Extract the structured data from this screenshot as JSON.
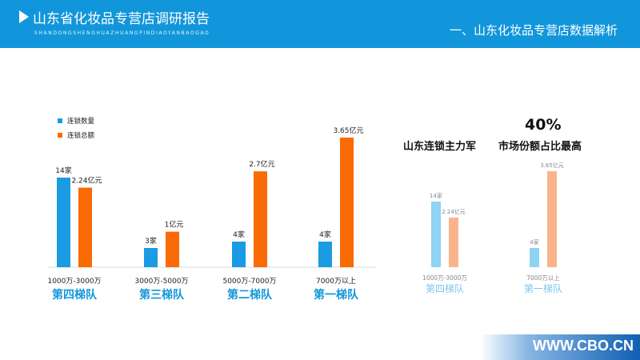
{
  "header": {
    "title": "山东省化妆品专营店调研报告",
    "subtitle": "SHANDONGSHENGHUAZHUANGPINDIAOYANBAOGAO",
    "section_title": "一、山东化妆品专营店数据解析"
  },
  "colors": {
    "header_bg": "#1296db",
    "count_bar": "#1a9be3",
    "amount_bar": "#fa6a05",
    "count_bar_light": "#8fd3f5",
    "amount_bar_light": "#f9b48c",
    "tier_label": "#1296db",
    "tier_label_light": "#7cc8f0"
  },
  "highlight": {
    "line1": "山东连锁主力军",
    "percent": "40%",
    "line2": "市场份额占比最高"
  },
  "chart_data": [
    {
      "type": "bar",
      "categories": [
        "1000万-3000万",
        "3000万-5000万",
        "5000万-7000万",
        "7000万以上"
      ],
      "tiers": [
        "第四梯队",
        "第三梯队",
        "第二梯队",
        "第一梯队"
      ],
      "series": [
        {
          "name": "连锁数量",
          "values": [
            14,
            3,
            4,
            4
          ],
          "labels": [
            "14家",
            "3家",
            "4家",
            "4家"
          ]
        },
        {
          "name": "连锁总额",
          "values": [
            2.24,
            1,
            2.7,
            3.65
          ],
          "labels": [
            "2.24亿元",
            "1亿元",
            "2.7亿元",
            "3.65亿元"
          ]
        }
      ],
      "legend": "top-left",
      "grid": false
    },
    {
      "type": "bar",
      "categories": [
        "1000万-3000万"
      ],
      "tiers": [
        "第四梯队"
      ],
      "series": [
        {
          "name": "连锁数量",
          "values": [
            14
          ],
          "labels": [
            "14家"
          ]
        },
        {
          "name": "连锁总额",
          "values": [
            2.24
          ],
          "labels": [
            "2.24亿元"
          ]
        }
      ]
    },
    {
      "type": "bar",
      "categories": [
        "7000万以上"
      ],
      "tiers": [
        "第一梯队"
      ],
      "series": [
        {
          "name": "连锁数量",
          "values": [
            4
          ],
          "labels": [
            "4家"
          ]
        },
        {
          "name": "连锁总额",
          "values": [
            3.65
          ],
          "labels": [
            "3.65亿元"
          ]
        }
      ]
    }
  ],
  "footer": {
    "url": "WWW.CBO.CN"
  }
}
